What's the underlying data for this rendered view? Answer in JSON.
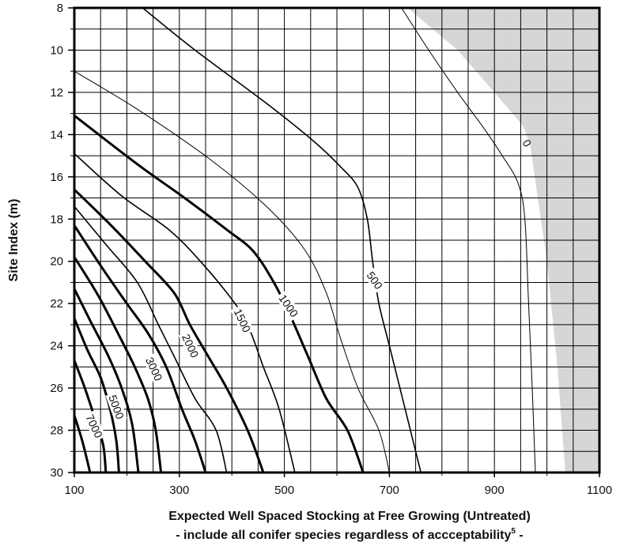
{
  "chart_data": {
    "type": "contour",
    "xlabel": "Expected Well Spaced Stocking at Free Growing (Untreated)",
    "xlabel_note": "- include all conifer species regardless of accceptability",
    "xlabel_note_sup": "5",
    "xlabel_note_end": " -",
    "ylabel": "Site Index (m)",
    "xlim": [
      100,
      1100
    ],
    "ylim": [
      8,
      30
    ],
    "y_inverted": true,
    "x_ticks": [
      100,
      300,
      500,
      700,
      900,
      1100
    ],
    "x_tick_labels": [
      "100",
      "300",
      "500",
      "700",
      "900",
      "1100"
    ],
    "y_ticks": [
      8,
      10,
      12,
      14,
      16,
      18,
      20,
      22,
      24,
      26,
      28,
      30
    ],
    "y_tick_labels": [
      "8",
      "10",
      "12",
      "14",
      "16",
      "18",
      "20",
      "22",
      "24",
      "26",
      "28",
      "30"
    ],
    "grid": true,
    "shaded_region": {
      "color": "#d6d6d6",
      "boundary": [
        [
          735,
          8
        ],
        [
          830,
          10
        ],
        [
          900,
          12
        ],
        [
          955,
          13.6
        ],
        [
          968,
          14.5
        ],
        [
          1000,
          20
        ],
        [
          1020,
          25
        ],
        [
          1035,
          30
        ],
        [
          1100,
          30
        ],
        [
          1100,
          8
        ]
      ]
    },
    "series": [
      {
        "level": "0",
        "weight": "thin",
        "points": []
      },
      {
        "level": "",
        "weight": "thin",
        "points": [
          [
            723,
            8
          ],
          [
            775,
            10
          ],
          [
            830,
            12
          ],
          [
            880,
            13.7
          ],
          [
            915,
            15
          ],
          [
            945,
            16.3
          ],
          [
            958,
            18
          ],
          [
            965,
            22
          ],
          [
            972,
            26
          ],
          [
            978,
            30
          ]
        ]
      },
      {
        "level": "500",
        "weight": "normal",
        "points": [
          [
            230,
            8
          ],
          [
            330,
            10
          ],
          [
            470,
            12.6
          ],
          [
            560,
            14.4
          ],
          [
            610,
            15.6
          ],
          [
            640,
            16.5
          ],
          [
            658,
            18
          ],
          [
            668,
            20
          ],
          [
            680,
            22
          ],
          [
            700,
            24
          ],
          [
            720,
            26
          ],
          [
            745,
            28.5
          ],
          [
            760,
            30
          ]
        ]
      },
      {
        "level": "",
        "weight": "thin",
        "points": [
          [
            100,
            11
          ],
          [
            220,
            12.8
          ],
          [
            360,
            15.2
          ],
          [
            470,
            17.5
          ],
          [
            540,
            19.5
          ],
          [
            580,
            21.5
          ],
          [
            605,
            23.5
          ],
          [
            640,
            26
          ],
          [
            680,
            28
          ],
          [
            700,
            30
          ]
        ]
      },
      {
        "level": "1000",
        "weight": "bold",
        "points": [
          [
            100,
            13.1
          ],
          [
            220,
            15.4
          ],
          [
            310,
            17
          ],
          [
            390,
            18.5
          ],
          [
            440,
            19.5
          ],
          [
            480,
            21
          ],
          [
            510,
            22.5
          ],
          [
            545,
            24.5
          ],
          [
            580,
            26.5
          ],
          [
            620,
            28
          ],
          [
            650,
            30
          ]
        ]
      },
      {
        "level": "1500",
        "weight": "normal",
        "points": [
          [
            100,
            14.9
          ],
          [
            190,
            16.9
          ],
          [
            280,
            18.5
          ],
          [
            340,
            20
          ],
          [
            400,
            21.8
          ],
          [
            430,
            23
          ],
          [
            460,
            25
          ],
          [
            490,
            27
          ],
          [
            520,
            30
          ]
        ]
      },
      {
        "level": "2000",
        "weight": "bold",
        "points": [
          [
            100,
            16.6
          ],
          [
            170,
            18.3
          ],
          [
            235,
            20
          ],
          [
            290,
            21.5
          ],
          [
            320,
            23
          ],
          [
            355,
            24.5
          ],
          [
            390,
            26
          ],
          [
            430,
            28
          ],
          [
            460,
            30
          ]
        ]
      },
      {
        "level": "",
        "weight": "normal",
        "points": [
          [
            100,
            17.4
          ],
          [
            160,
            19.2
          ],
          [
            220,
            21
          ],
          [
            260,
            23
          ],
          [
            290,
            24.5
          ],
          [
            330,
            26.5
          ],
          [
            370,
            28
          ],
          [
            390,
            30
          ]
        ]
      },
      {
        "level": "3000",
        "weight": "bold",
        "points": [
          [
            100,
            18.3
          ],
          [
            150,
            20.2
          ],
          [
            200,
            22
          ],
          [
            240,
            23.4
          ],
          [
            275,
            25
          ],
          [
            305,
            27
          ],
          [
            330,
            28.5
          ],
          [
            350,
            30
          ]
        ]
      },
      {
        "level": "",
        "weight": "bold",
        "points": [
          [
            100,
            19.8
          ],
          [
            145,
            21.6
          ],
          [
            185,
            23.5
          ],
          [
            215,
            25
          ],
          [
            240,
            26.5
          ],
          [
            255,
            28
          ],
          [
            265,
            30
          ]
        ]
      },
      {
        "level": "5000",
        "weight": "bold",
        "points": [
          [
            100,
            21.3
          ],
          [
            130,
            22.8
          ],
          [
            165,
            24.5
          ],
          [
            190,
            26
          ],
          [
            210,
            27.7
          ],
          [
            222,
            30
          ]
        ]
      },
      {
        "level": "",
        "weight": "bold",
        "points": [
          [
            100,
            22.7
          ],
          [
            125,
            24.2
          ],
          [
            150,
            25.5
          ],
          [
            168,
            27
          ],
          [
            180,
            28.5
          ],
          [
            185,
            30
          ]
        ]
      },
      {
        "level": "7000",
        "weight": "bold",
        "points": [
          [
            100,
            24.7
          ],
          [
            120,
            26
          ],
          [
            140,
            27.5
          ],
          [
            155,
            28.7
          ],
          [
            160,
            30
          ]
        ]
      },
      {
        "level": "",
        "weight": "bold",
        "points": [
          [
            100,
            27.3
          ],
          [
            115,
            28.5
          ],
          [
            130,
            30
          ]
        ]
      }
    ],
    "contour_labels": [
      {
        "text": "0",
        "x": 962,
        "y": 14.4,
        "rotate": 60
      },
      {
        "text": "500",
        "x": 672,
        "y": 20.9,
        "rotate": 55
      },
      {
        "text": "1000",
        "x": 508,
        "y": 22.1,
        "rotate": 55
      },
      {
        "text": "1500",
        "x": 420,
        "y": 22.8,
        "rotate": 65
      },
      {
        "text": "2000",
        "x": 321,
        "y": 24.0,
        "rotate": 65
      },
      {
        "text": "3000",
        "x": 252,
        "y": 25.1,
        "rotate": 65
      },
      {
        "text": "5000",
        "x": 180,
        "y": 26.9,
        "rotate": 70
      },
      {
        "text": "7000",
        "x": 138,
        "y": 27.8,
        "rotate": 65
      }
    ]
  }
}
